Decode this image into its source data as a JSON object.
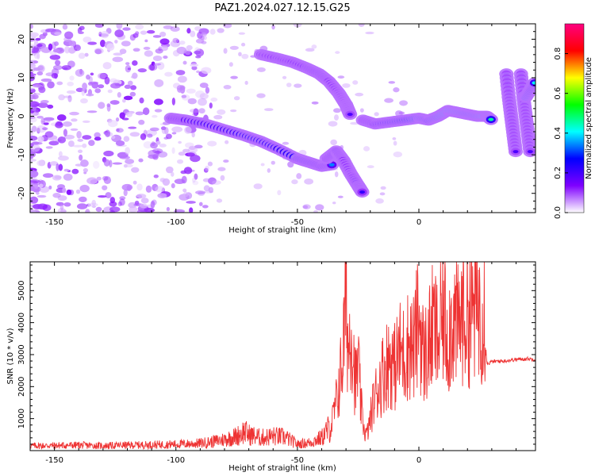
{
  "title": "PAZ1.2024.027.12.15.G25",
  "chart_data": [
    {
      "type": "heatmap",
      "xlabel": "Height of straight line (km)",
      "ylabel": "Frequency (Hz)",
      "xlim": [
        -160,
        48
      ],
      "ylim": [
        -25,
        24
      ],
      "xticks": [
        -150,
        -100,
        -50,
        0
      ],
      "yticks": [
        -20,
        -10,
        0,
        10,
        20
      ],
      "colorbar": {
        "label": "Normalized spectral amplitude",
        "range": [
          0.0,
          0.95
        ],
        "ticks": [
          0.0,
          0.2,
          0.4,
          0.6,
          0.8
        ],
        "colormap": [
          "#ffffff",
          "#7f00ff",
          "#0000ff",
          "#00ffff",
          "#00ff00",
          "#ffff00",
          "#ff0000",
          "#ff0080"
        ]
      },
      "features": [
        {
          "label": "main-arrival",
          "x": [
            -102,
            -96,
            -88,
            -80,
            -72,
            -65,
            -58,
            -50,
            -45,
            -40,
            -35
          ],
          "y": [
            -0.5,
            -1,
            -2,
            -3.5,
            -5,
            -6.5,
            -8.5,
            -11,
            -12,
            -13,
            -12.5
          ],
          "peak": [
            0.3,
            0.35,
            0.4,
            0.4,
            0.45,
            0.45,
            0.45,
            0.5,
            0.45,
            0.4,
            0.35
          ]
        },
        {
          "label": "upper-branch",
          "x": [
            -65,
            -58,
            -52,
            -46,
            -41,
            -37,
            -33,
            -30,
            -28
          ],
          "y": [
            16,
            15,
            14,
            12.5,
            11,
            9,
            6,
            3,
            0
          ],
          "peak": [
            0.2,
            0.25,
            0.3,
            0.3,
            0.35,
            0.3,
            0.25,
            0.2,
            0.2
          ]
        },
        {
          "label": "lower-branch",
          "x": [
            -38,
            -34,
            -31,
            -28,
            -25,
            -23
          ],
          "y": [
            -11,
            -9,
            -11.5,
            -15,
            -18,
            -20
          ],
          "peak": [
            0.3,
            0.4,
            0.3,
            0.25,
            0.4,
            0.2
          ]
        },
        {
          "label": "flat-arrival",
          "x": [
            -23,
            -18,
            -12,
            -6,
            0,
            4,
            8,
            12,
            16,
            20,
            24,
            28,
            30
          ],
          "y": [
            -1,
            -2,
            -1.5,
            -1,
            -0.5,
            -1,
            0,
            1.5,
            1,
            0.5,
            0,
            0,
            -1
          ],
          "peak": [
            0.3,
            0.35,
            0.45,
            0.55,
            0.7,
            0.6,
            0.75,
            0.85,
            0.8,
            0.7,
            0.75,
            0.9,
            0.4
          ]
        },
        {
          "label": "tail-1",
          "x": [
            36,
            37,
            38,
            39,
            40
          ],
          "y": [
            11,
            5,
            0,
            -5,
            -10
          ],
          "peak": [
            0.2,
            0.2,
            0.2,
            0.2,
            0.2
          ]
        },
        {
          "label": "tail-2",
          "x": [
            42,
            43,
            44,
            45,
            46
          ],
          "y": [
            11,
            5,
            0,
            -5,
            -10
          ],
          "peak": [
            0.2,
            0.2,
            0.2,
            0.2,
            0.2
          ]
        },
        {
          "label": "tail-3",
          "x": [
            44,
            46,
            48
          ],
          "y": [
            5,
            7,
            9
          ],
          "peak": [
            0.7,
            0.6,
            0.4
          ]
        }
      ]
    },
    {
      "type": "line",
      "xlabel": "Height of straight line (km)",
      "ylabel": "SNR (10 * v/v)",
      "xlim": [
        -160,
        48
      ],
      "ylim": [
        0,
        5900
      ],
      "xticks": [
        -150,
        -100,
        -50,
        0
      ],
      "yticks": [
        1000,
        2000,
        3000,
        4000,
        5000
      ],
      "series": [
        {
          "color": "#ee3333",
          "x": [
            -160,
            -150,
            -140,
            -130,
            -120,
            -110,
            -100,
            -95,
            -90,
            -85,
            -80,
            -75,
            -72,
            -70,
            -65,
            -60,
            -55,
            -50,
            -45,
            -40,
            -36,
            -34,
            -32,
            -31,
            -30,
            -29,
            -28,
            -27,
            -26,
            -25,
            -24,
            -23,
            -22,
            -21,
            -20,
            -19,
            -18,
            -15,
            -12,
            -10,
            -8,
            -6,
            -4,
            -2,
            0,
            2,
            4,
            6,
            8,
            10,
            12,
            14,
            16,
            18,
            20,
            22,
            24,
            26,
            27,
            27.5,
            28,
            30,
            35,
            40,
            45,
            48
          ],
          "y": [
            150,
            160,
            170,
            150,
            170,
            180,
            200,
            210,
            230,
            280,
            350,
            450,
            600,
            500,
            400,
            450,
            420,
            200,
            250,
            400,
            800,
            1500,
            2500,
            3300,
            5000,
            3000,
            4200,
            3000,
            2000,
            2800,
            1500,
            900,
            500,
            600,
            1000,
            1400,
            1700,
            2400,
            2900,
            2600,
            3100,
            3000,
            3400,
            3200,
            4200,
            2900,
            3300,
            3900,
            3400,
            4300,
            3600,
            4200,
            3800,
            4300,
            4200,
            4400,
            4600,
            4400,
            4500,
            3400,
            2700,
            2780,
            2800,
            2850,
            2870,
            2850
          ]
        }
      ]
    }
  ]
}
